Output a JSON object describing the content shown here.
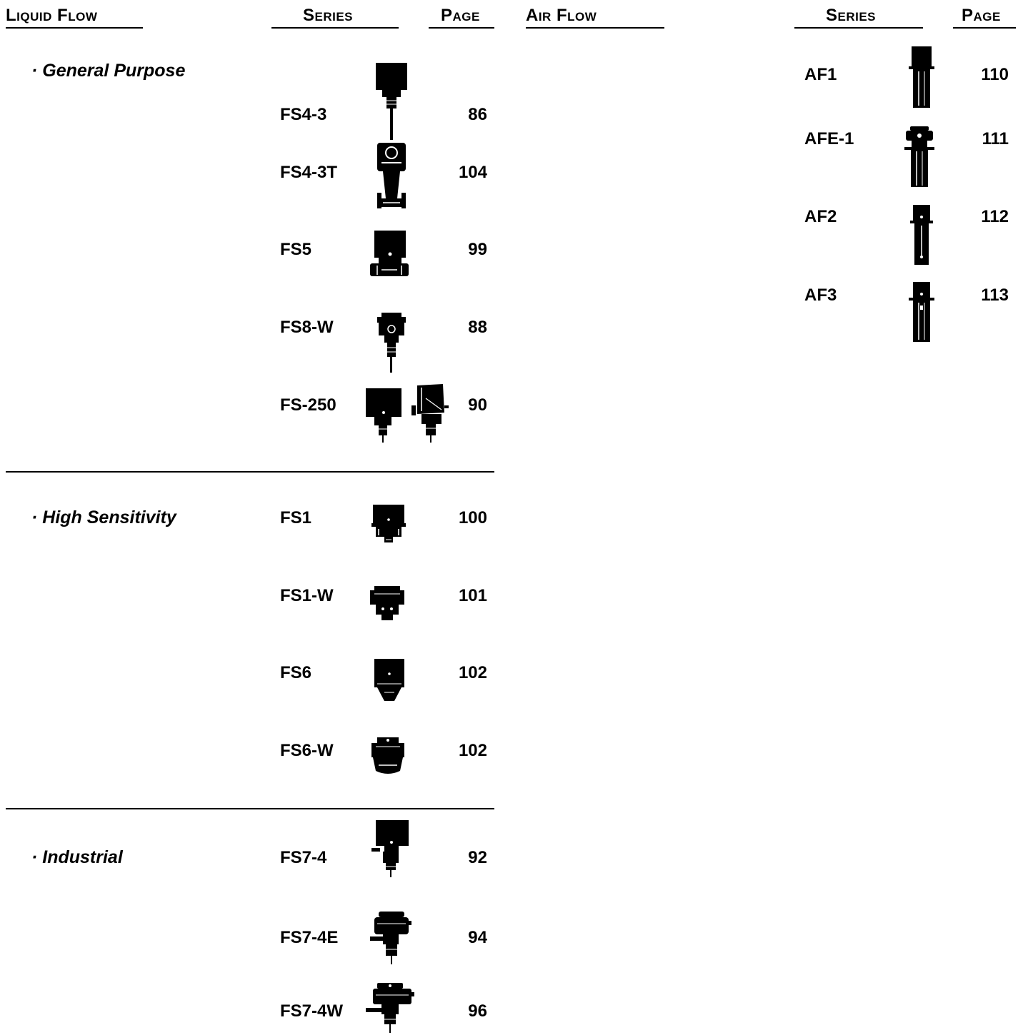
{
  "liquid_flow": {
    "header": "Liquid Flow",
    "series_header": "Series",
    "page_header": "Page",
    "groups": [
      {
        "category": "· General Purpose",
        "items": [
          {
            "series": "FS4-3",
            "page": "86",
            "icon": "paddle-flow-switch-icon"
          },
          {
            "series": "FS4-3T",
            "page": "104",
            "icon": "tee-flow-switch-icon"
          },
          {
            "series": "FS5",
            "page": "99",
            "icon": "inline-flow-switch-icon"
          },
          {
            "series": "FS8-W",
            "page": "88",
            "icon": "weatherproof-flow-switch-icon"
          },
          {
            "series": "FS-250",
            "page": "90",
            "icon": "paddle-flow-switch-pair-icon"
          }
        ]
      },
      {
        "category": "· High Sensitivity",
        "items": [
          {
            "series": "FS1",
            "page": "100",
            "icon": "high-sensitivity-switch-icon"
          },
          {
            "series": "FS1-W",
            "page": "101",
            "icon": "weatherproof-sensitivity-switch-icon"
          },
          {
            "series": "FS6",
            "page": "102",
            "icon": "high-sensitivity-switch-icon"
          },
          {
            "series": "FS6-W",
            "page": "102",
            "icon": "weatherproof-sensitivity-switch-icon"
          }
        ]
      },
      {
        "category": "· Industrial",
        "items": [
          {
            "series": "FS7-4",
            "page": "92",
            "icon": "industrial-flow-switch-icon"
          },
          {
            "series": "FS7-4E",
            "page": "94",
            "icon": "explosion-proof-flow-switch-icon"
          },
          {
            "series": "FS7-4W",
            "page": "96",
            "icon": "weatherproof-industrial-switch-icon"
          }
        ]
      }
    ]
  },
  "air_flow": {
    "header": "Air Flow",
    "series_header": "Series",
    "page_header": "Page",
    "items": [
      {
        "series": "AF1",
        "page": "110",
        "icon": "air-flow-switch-icon"
      },
      {
        "series": "AFE-1",
        "page": "111",
        "icon": "explosion-proof-air-switch-icon"
      },
      {
        "series": "AF2",
        "page": "112",
        "icon": "air-flow-switch-icon"
      },
      {
        "series": "AF3",
        "page": "113",
        "icon": "air-flow-switch-icon"
      }
    ]
  }
}
